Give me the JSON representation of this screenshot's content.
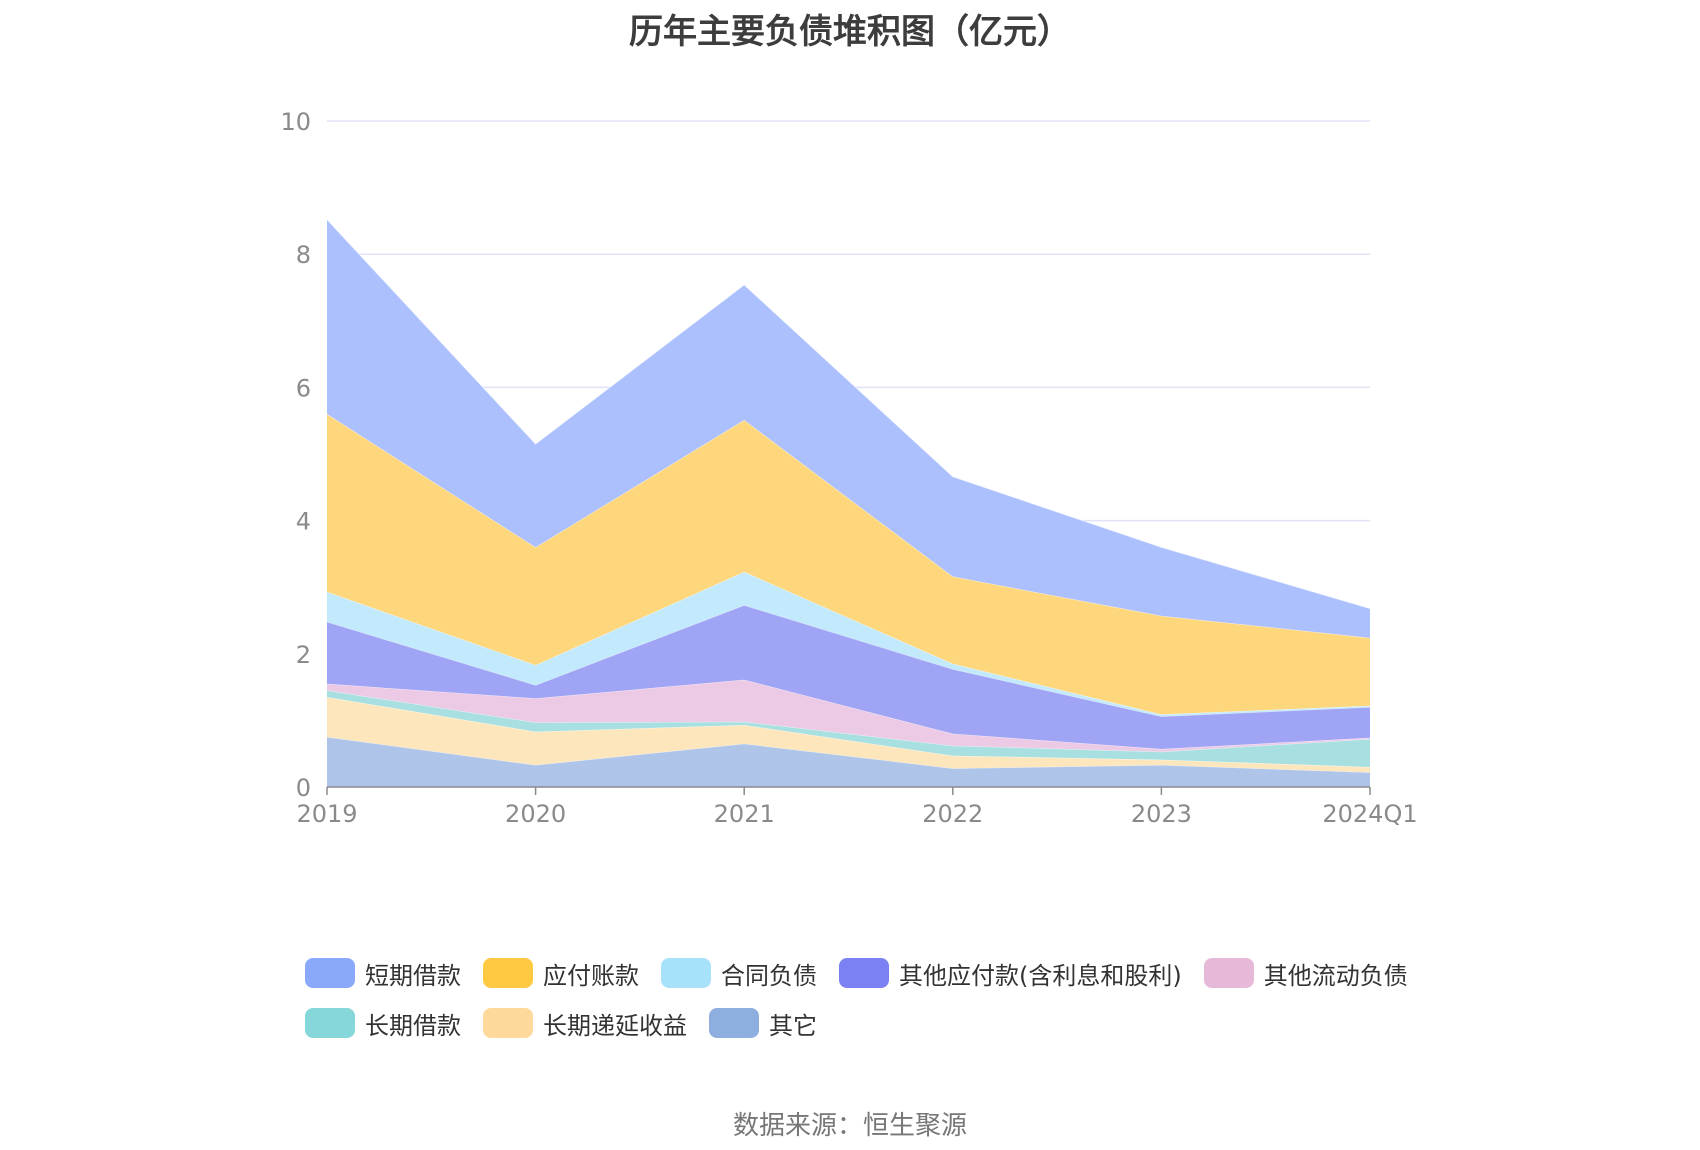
{
  "chart_data": {
    "type": "area",
    "stacked": true,
    "title": "历年主要负债堆积图（亿元）",
    "categories": [
      "2019",
      "2020",
      "2021",
      "2022",
      "2023",
      "2024Q1"
    ],
    "y_ticks": [
      0,
      2,
      4,
      6,
      8,
      10
    ],
    "ylim": [
      0,
      10
    ],
    "grid": true,
    "legend_position": "bottom",
    "series": [
      {
        "name": "其它",
        "color": "#8eaee0",
        "fill": "#aec4e8",
        "values": [
          0.75,
          0.33,
          0.65,
          0.28,
          0.33,
          0.22
        ]
      },
      {
        "name": "长期递延收益",
        "color": "#ffd89b",
        "fill": "#fde6bc",
        "values": [
          0.6,
          0.5,
          0.28,
          0.19,
          0.08,
          0.08
        ]
      },
      {
        "name": "长期借款",
        "color": "#86d7d9",
        "fill": "#a8e0e2",
        "values": [
          0.1,
          0.14,
          0.05,
          0.15,
          0.12,
          0.42
        ]
      },
      {
        "name": "其他流动负债",
        "color": "#e6b9d9",
        "fill": "#ecc9e4",
        "values": [
          0.1,
          0.36,
          0.63,
          0.18,
          0.04,
          0.02
        ]
      },
      {
        "name": "其他应付款(含利息和股利)",
        "color": "#7b80f2",
        "fill": "#9fa4f5",
        "values": [
          0.93,
          0.2,
          1.12,
          0.97,
          0.49,
          0.46
        ]
      },
      {
        "name": "合同负债",
        "color": "#a8e2fa",
        "fill": "#c2eafc",
        "values": [
          0.45,
          0.3,
          0.5,
          0.08,
          0.03,
          0.02
        ]
      },
      {
        "name": "应付账款",
        "color": "#ffc941",
        "fill": "#fed67c",
        "values": [
          2.67,
          1.77,
          2.28,
          1.31,
          1.48,
          1.02
        ]
      },
      {
        "name": "短期借款",
        "color": "#8aa9fb",
        "fill": "#abc0fd",
        "values": [
          2.92,
          1.55,
          2.03,
          1.5,
          1.03,
          0.44
        ]
      }
    ]
  },
  "source_text": "数据来源：恒生聚源"
}
